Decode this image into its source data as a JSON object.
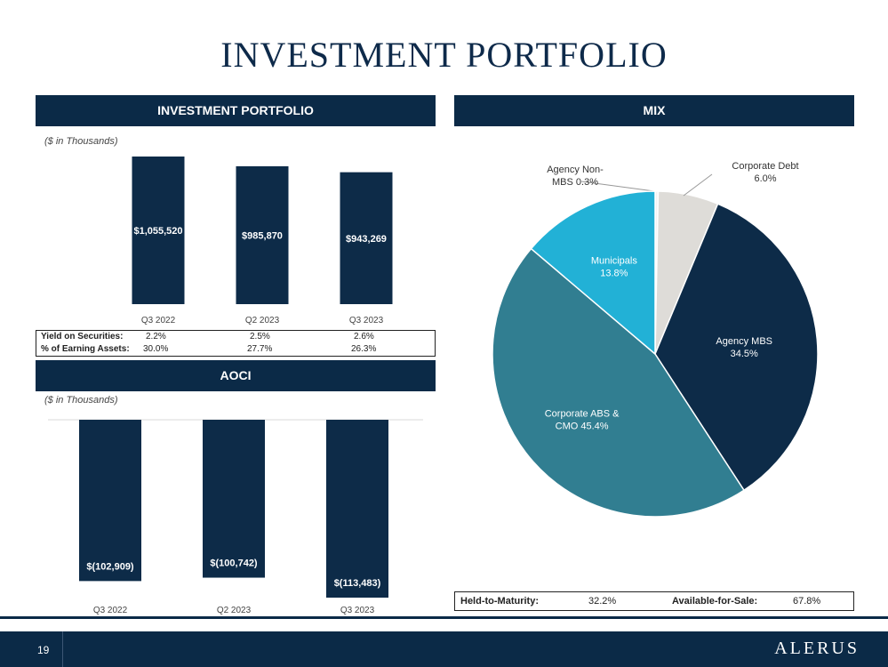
{
  "page": {
    "title": "INVESTMENT PORTFOLIO",
    "page_number": "19",
    "logo_text": "ALERUS"
  },
  "panels": {
    "portfolio": {
      "header": "INVESTMENT PORTFOLIO",
      "unit_note": "($ in Thousands)"
    },
    "aoci": {
      "header": "AOCI",
      "unit_note": "($ in Thousands)"
    },
    "mix": {
      "header": "MIX"
    }
  },
  "metrics": {
    "yield": {
      "label": "Yield on Securities:",
      "values": [
        "2.2%",
        "2.5%",
        "2.6%"
      ]
    },
    "earning": {
      "label": "% of Earning Assets:",
      "values": [
        "30.0%",
        "27.7%",
        "26.3%"
      ]
    }
  },
  "maturity": {
    "htm_label": "Held-to-Maturity:",
    "htm_value": "32.2%",
    "afs_label": "Available-for-Sale:",
    "afs_value": "67.8%"
  },
  "colors": {
    "navy": "#0b2a47",
    "bar": "#0d2b48",
    "agency_mbs": "#0d2b48",
    "corporate_abs": "#317e91",
    "municipals": "#22b1d6",
    "corporate_debt": "#dedcd8",
    "agency_non_mbs": "#f2f2f2"
  },
  "chart_data": [
    {
      "type": "bar",
      "categories": [
        "Q3 2022",
        "Q2 2023",
        "Q3 2023"
      ],
      "values": [
        1055520,
        985870,
        943269
      ],
      "data_labels": [
        "$1,055,520",
        "$985,870",
        "$943,269"
      ]
    },
    {
      "type": "bar",
      "categories": [
        "Q3 2022",
        "Q2 2023",
        "Q3 2023"
      ],
      "values": [
        -102909,
        -100742,
        -113483
      ],
      "data_labels": [
        "$(102,909)",
        "$(100,742)",
        "$(113,483)"
      ]
    },
    {
      "type": "pie",
      "slices": [
        {
          "label_lines": [
            "Agency Non-",
            "MBS 0.3%"
          ],
          "value": 0.3,
          "color": "#f2f2f2"
        },
        {
          "label_lines": [
            "Corporate Debt",
            "6.0%"
          ],
          "value": 6.0,
          "color": "#dedcd8"
        },
        {
          "label_lines": [
            "Agency MBS",
            "34.5%"
          ],
          "value": 34.5,
          "color": "#0d2b48"
        },
        {
          "label_lines": [
            "Corporate ABS &",
            "CMO 45.4%"
          ],
          "value": 45.4,
          "color": "#317e91"
        },
        {
          "label_lines": [
            "Municipals",
            "13.8%"
          ],
          "value": 13.8,
          "color": "#22b1d6"
        }
      ]
    }
  ]
}
